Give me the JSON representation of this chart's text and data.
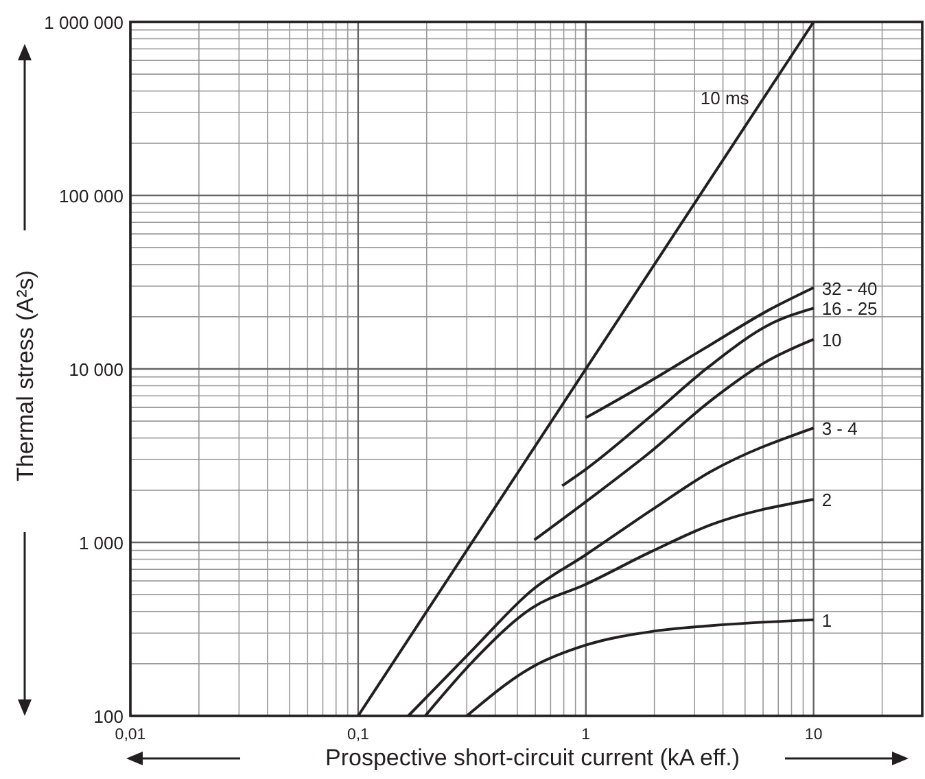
{
  "chart_data": {
    "type": "line",
    "xlabel": "Prospective short-circuit current (kA eff.)",
    "ylabel": "Thermal stress (A²s)",
    "log": "xy",
    "grid": true,
    "marker": "none",
    "line_style": "solid",
    "xlim": [
      0.01,
      30
    ],
    "xticks": [
      {
        "value": 0.01,
        "label": "0,01"
      },
      {
        "value": 0.1,
        "label": "0,1"
      },
      1,
      10
    ],
    "ylim": [
      100,
      1000000
    ],
    "yticks": [
      100,
      {
        "value": 1000,
        "label": "1 000"
      },
      {
        "value": 10000,
        "label": "10 000"
      },
      {
        "value": 100000,
        "label": "100 000"
      },
      {
        "value": 1000000,
        "label": "1 000 000"
      }
    ],
    "series": [
      {
        "name": "10 ms",
        "color": "#231f20",
        "x": [
          0.1,
          10
        ],
        "values": [
          100,
          1000000
        ]
      },
      {
        "name": "32 - 40",
        "color": "#231f20",
        "x": [
          1,
          1.93,
          3.5,
          6.38,
          10
        ],
        "values": [
          5230,
          8550,
          13700,
          21900,
          29400
        ]
      },
      {
        "name": "16 - 25",
        "color": "#231f20",
        "x": [
          0.787,
          1,
          1.93,
          3.5,
          6.38,
          10
        ],
        "values": [
          2120,
          2640,
          5350,
          10400,
          18000,
          22400
        ]
      },
      {
        "name": "10",
        "color": "#231f20",
        "x": [
          0.594,
          1,
          1.93,
          3.5,
          6.38,
          10
        ],
        "values": [
          1033,
          1717,
          3340,
          6500,
          11250,
          14800
        ]
      },
      {
        "name": "3 - 4",
        "color": "#231f20",
        "x": [
          0.166,
          0.32,
          0.58,
          1,
          1.93,
          3.5,
          10
        ],
        "values": [
          100,
          242,
          530,
          849,
          1528,
          2540,
          4570
        ]
      },
      {
        "name": "2",
        "color": "#231f20",
        "x": [
          0.197,
          0.32,
          0.58,
          1,
          1.93,
          3.5,
          10
        ],
        "values": [
          100,
          207,
          419,
          574,
          883,
          1257,
          1770
        ]
      },
      {
        "name": "1",
        "color": "#231f20",
        "x": [
          0.3,
          0.58,
          1,
          1.93,
          3.5,
          10
        ],
        "values": [
          100,
          191,
          256,
          306,
          331,
          358
        ]
      }
    ]
  }
}
